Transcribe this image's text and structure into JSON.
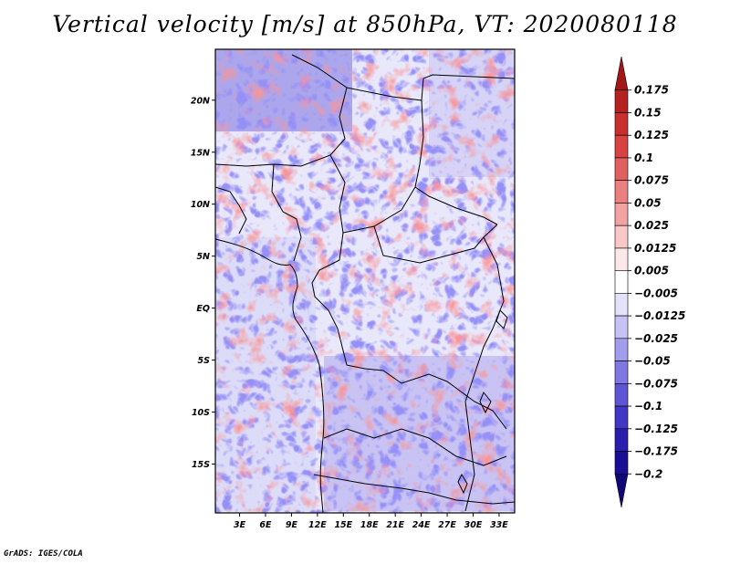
{
  "title": "Vertical velocity [m/s] at 850hPa, VT: 2020080118",
  "credit": "GrADS: IGES/COLA",
  "lat_labels": [
    "20N",
    "15N",
    "10N",
    "5N",
    "EQ",
    "5S",
    "10S",
    "15S"
  ],
  "lat_values": [
    20,
    15,
    10,
    5,
    0,
    -5,
    -10,
    -15
  ],
  "lon_labels": [
    "3E",
    "6E",
    "9E",
    "12E",
    "15E",
    "18E",
    "21E",
    "24E",
    "27E",
    "30E",
    "33E"
  ],
  "lon_values": [
    3,
    6,
    9,
    12,
    15,
    18,
    21,
    24,
    27,
    30,
    33
  ],
  "extent": {
    "lon_min": 0.2,
    "lon_max": 34.8,
    "lat_min": -19.7,
    "lat_max": 24.9
  },
  "colorbar": {
    "labels": [
      "0.175",
      "0.15",
      "0.125",
      "0.1",
      "0.075",
      "0.05",
      "0.025",
      "0.0125",
      "0.005",
      "−0.005",
      "−0.0125",
      "−0.025",
      "−0.05",
      "−0.075",
      "−0.1",
      "−0.125",
      "−0.175",
      "−0.2"
    ],
    "colors": [
      "#a01818",
      "#b52121",
      "#c83030",
      "#d84242",
      "#e25f5f",
      "#ea7f7f",
      "#f2a2a2",
      "#f8c8c8",
      "#fce8e8",
      "#ffffff",
      "#e4e2fb",
      "#c6c2f4",
      "#a29cec",
      "#8078e2",
      "#5e55d4",
      "#4236c4",
      "#2a1eb0",
      "#1a0e96",
      "#110878"
    ]
  }
}
